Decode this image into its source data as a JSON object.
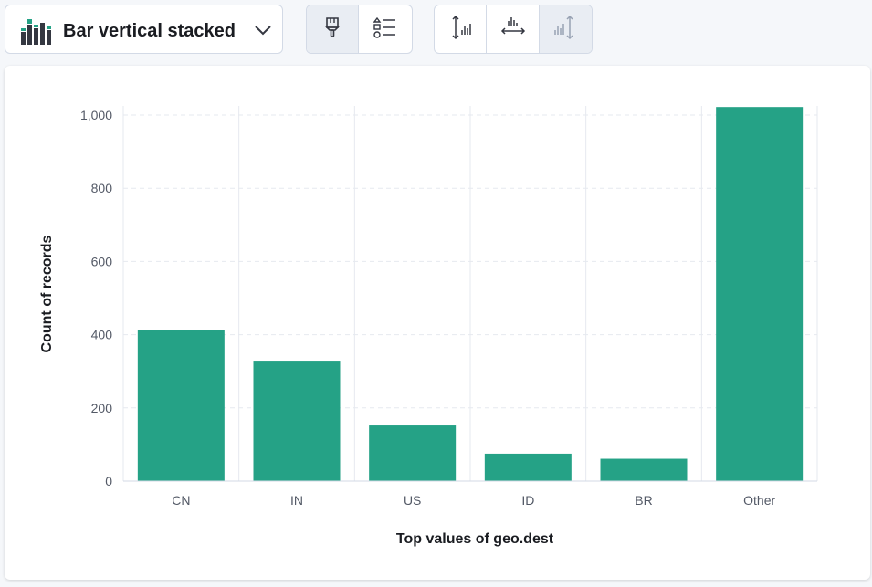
{
  "toolbar": {
    "chart_type_label": "Bar vertical stacked",
    "icons": [
      "bar-stacked-icon",
      "chevron-down-icon",
      "paintbrush-icon",
      "legend-list-icon",
      "left-axis-icon",
      "bottom-axis-icon",
      "right-axis-icon"
    ]
  },
  "colors": {
    "bar": "#25a286",
    "icon_dark": "#343741",
    "icon_muted": "#98a2b3",
    "grid": "#e6e9ef"
  },
  "chart_data": {
    "type": "bar",
    "categories": [
      "CN",
      "IN",
      "US",
      "ID",
      "BR",
      "Other"
    ],
    "values": [
      413,
      329,
      152,
      75,
      61,
      1022
    ],
    "xlabel": "Top values of geo.dest",
    "ylabel": "Count of records",
    "ylim": [
      0,
      1000
    ],
    "yticks": [
      "0",
      "200",
      "400",
      "600",
      "800",
      "1,000"
    ],
    "grid": true,
    "legend": "none"
  }
}
